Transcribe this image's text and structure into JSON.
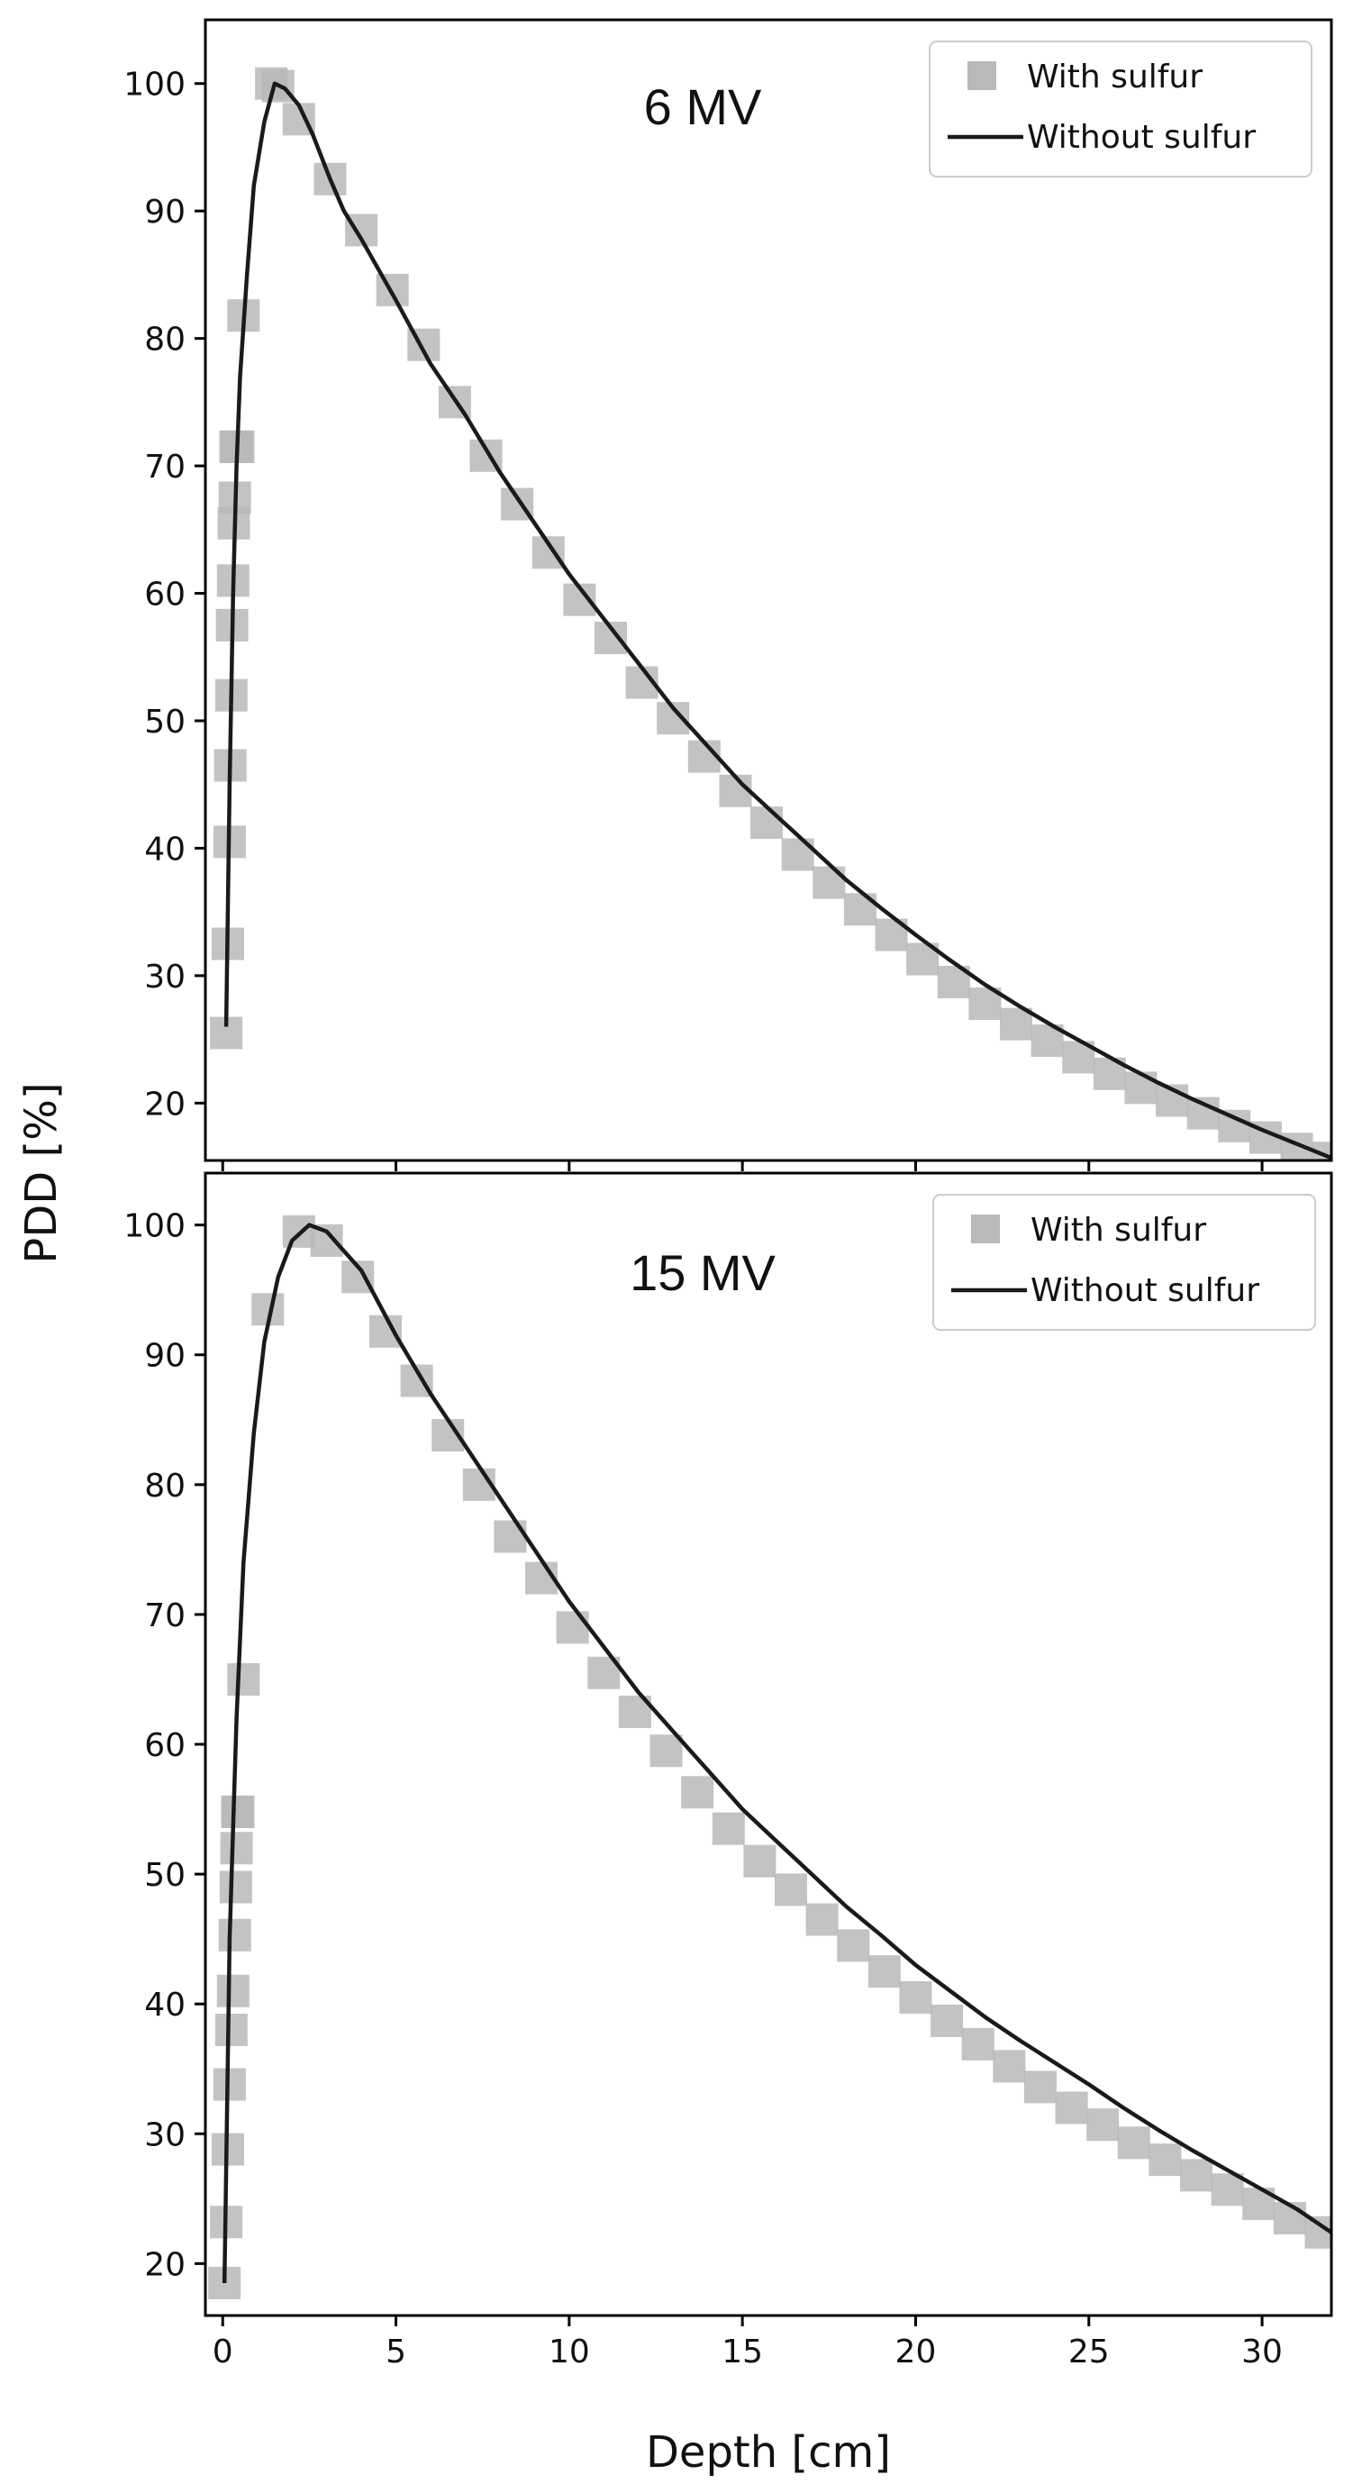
{
  "figure": {
    "ylabel": "PDD [%]",
    "xlabel": "Depth [cm]",
    "colors": {
      "marker": "#b9b9b9",
      "line": "#1a1a1a",
      "axes": "#000000"
    }
  },
  "chart_data": [
    {
      "type": "line",
      "title": "6 MV",
      "xlim": [
        -0.5,
        32
      ],
      "ylim": [
        15.5,
        105
      ],
      "xticks": [
        0,
        5,
        10,
        15,
        20,
        25,
        30
      ],
      "yticks": [
        20,
        30,
        40,
        50,
        60,
        70,
        80,
        90,
        100
      ],
      "legend_placement": "top-right",
      "series": [
        {
          "name": "With sulfur",
          "kind": "marker",
          "x": [
            0.1,
            0.15,
            0.2,
            0.22,
            0.25,
            0.27,
            0.3,
            0.32,
            0.35,
            0.37,
            0.4,
            0.45,
            0.6,
            1.4,
            1.6,
            2.2,
            3.1,
            4.0,
            4.9,
            5.8,
            6.7,
            7.6,
            8.5,
            9.4,
            10.3,
            11.2,
            12.1,
            13.0,
            13.9,
            14.8,
            15.7,
            16.6,
            17.5,
            18.4,
            19.3,
            20.2,
            21.1,
            22.0,
            22.9,
            23.8,
            24.7,
            25.6,
            26.5,
            27.4,
            28.3,
            29.2,
            30.1,
            31.0,
            31.9
          ],
          "y": [
            25.5,
            32.5,
            40.5,
            46.5,
            52,
            57.5,
            61,
            65.5,
            67.5,
            71.5,
            71.5,
            71.5,
            81.8,
            100,
            99.8,
            97.2,
            92.5,
            88.5,
            83.8,
            79.5,
            75,
            70.8,
            67,
            63.2,
            59.5,
            56.5,
            53,
            50.2,
            47.2,
            44.5,
            42,
            39.5,
            37.3,
            35.2,
            33.2,
            31.3,
            29.5,
            27.8,
            26.2,
            24.9,
            23.6,
            22.3,
            21.2,
            20.2,
            19.2,
            18.2,
            17.3,
            16.4,
            15.7
          ]
        },
        {
          "name": "Without sulfur",
          "kind": "line",
          "x": [
            0.1,
            0.2,
            0.3,
            0.4,
            0.5,
            0.7,
            0.9,
            1.2,
            1.5,
            1.8,
            2.2,
            2.6,
            3.1,
            3.5,
            4.0,
            5,
            6,
            7,
            8,
            9,
            10,
            11,
            12,
            13,
            14,
            15,
            16,
            17,
            18,
            19,
            20,
            21,
            22,
            23,
            24,
            25,
            26,
            27,
            28,
            29,
            30,
            31,
            32
          ],
          "y": [
            26,
            45,
            60,
            70,
            77,
            85,
            92,
            97,
            100,
            99.6,
            98.3,
            96,
            92.5,
            90,
            87.8,
            83,
            78,
            74,
            69.5,
            65.5,
            61.5,
            58,
            54.5,
            51,
            48,
            45,
            42.5,
            40,
            37.5,
            35.3,
            33.2,
            31.2,
            29.3,
            27.6,
            26,
            24.5,
            23,
            21.6,
            20.3,
            19.1,
            17.9,
            16.8,
            15.7
          ]
        }
      ]
    },
    {
      "type": "line",
      "title": "15 MV",
      "xlim": [
        -0.5,
        32
      ],
      "ylim": [
        16,
        104
      ],
      "xticks": [
        0,
        5,
        10,
        15,
        20,
        25,
        30
      ],
      "yticks": [
        20,
        30,
        40,
        50,
        60,
        70,
        80,
        90,
        100
      ],
      "legend_placement": "top-right",
      "series": [
        {
          "name": "With sulfur",
          "kind": "marker",
          "x": [
            0.05,
            0.1,
            0.15,
            0.2,
            0.25,
            0.3,
            0.35,
            0.38,
            0.4,
            0.42,
            0.45,
            0.6,
            1.3,
            2.2,
            3.0,
            3.9,
            4.7,
            5.6,
            6.5,
            7.4,
            8.3,
            9.2,
            10.1,
            11.0,
            11.9,
            12.8,
            13.7,
            14.6,
            15.5,
            16.4,
            17.3,
            18.2,
            19.1,
            20.0,
            20.9,
            21.8,
            22.7,
            23.6,
            24.5,
            25.4,
            26.3,
            27.2,
            28.1,
            29.0,
            29.9,
            30.8,
            31.7
          ],
          "y": [
            18.5,
            23.2,
            28.8,
            33.8,
            38,
            41,
            45.3,
            49,
            52,
            54.8,
            54.8,
            65,
            93.5,
            99.5,
            98.8,
            96,
            91.8,
            88,
            83.8,
            80,
            76,
            72.8,
            69,
            65.5,
            62.5,
            59.5,
            56.3,
            53.5,
            51,
            48.8,
            46.5,
            44.5,
            42.5,
            40.5,
            38.7,
            36.9,
            35.2,
            33.6,
            32,
            30.7,
            29.3,
            28,
            26.8,
            25.7,
            24.6,
            23.5,
            22.4
          ]
        },
        {
          "name": "Without sulfur",
          "kind": "line",
          "x": [
            0.05,
            0.2,
            0.4,
            0.6,
            0.9,
            1.2,
            1.6,
            2.0,
            2.5,
            3.0,
            3.5,
            4.0,
            5,
            6,
            7,
            8,
            9,
            10,
            11,
            12,
            13,
            14,
            15,
            16,
            17,
            18,
            19,
            20,
            21,
            22,
            23,
            24,
            25,
            26,
            27,
            28,
            29,
            30,
            31,
            32
          ],
          "y": [
            18.5,
            45,
            62,
            74,
            84,
            91,
            96,
            98.8,
            100,
            99.5,
            98,
            96.5,
            91.5,
            87,
            83,
            79,
            75,
            71,
            67.5,
            64,
            61,
            58,
            55,
            52.5,
            50,
            47.5,
            45.3,
            43,
            41,
            39,
            37.2,
            35.5,
            33.8,
            32,
            30.3,
            28.7,
            27.2,
            25.7,
            24.2,
            22.4
          ]
        }
      ]
    }
  ]
}
